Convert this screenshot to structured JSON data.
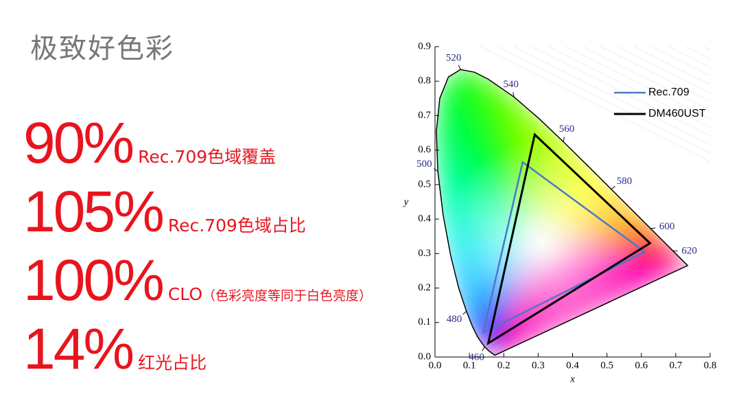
{
  "header": {
    "title": "极致好色彩"
  },
  "stats": [
    {
      "value": "90%",
      "label": "Rec.709色域覆盖"
    },
    {
      "value": "105%",
      "label": "Rec.709色域占比"
    },
    {
      "value": "100%",
      "label": "CLO",
      "note": "（色彩亮度等同于白色亮度）"
    },
    {
      "value": "14%",
      "label": "红光占比"
    }
  ],
  "chart_data": {
    "type": "chromaticity",
    "xlabel": "x",
    "ylabel": "y",
    "xlim": [
      0,
      0.8
    ],
    "ylim": [
      0,
      0.9
    ],
    "xticks": [
      {
        "value": 0,
        "label": "0.0"
      },
      0.1,
      0.2,
      0.3,
      0.4,
      0.5,
      0.6,
      0.7,
      0.8
    ],
    "yticks": [
      {
        "value": 0,
        "label": "0.0"
      },
      0.1,
      0.2,
      0.3,
      0.4,
      0.5,
      0.6,
      0.7,
      0.8,
      0.9
    ],
    "spectral_locus": {
      "wavelengths": [
        null,
        null,
        460,
        null,
        null,
        480,
        null,
        null,
        null,
        500,
        null,
        null,
        null,
        520,
        null,
        null,
        540,
        null,
        560,
        null,
        580,
        null,
        600,
        null,
        620,
        null,
        null
      ],
      "x": [
        0.1741,
        0.1566,
        0.144,
        0.1241,
        0.1096,
        0.0913,
        0.0687,
        0.0454,
        0.0235,
        0.0082,
        0.0039,
        0.0139,
        0.0389,
        0.0743,
        0.1142,
        0.1547,
        0.2296,
        0.3016,
        0.3731,
        0.4441,
        0.5125,
        0.5752,
        0.627,
        0.6658,
        0.6915,
        0.719,
        0.7347
      ],
      "y": [
        0.005,
        0.0177,
        0.0297,
        0.0578,
        0.0868,
        0.1327,
        0.2007,
        0.295,
        0.4127,
        0.5384,
        0.6548,
        0.7502,
        0.812,
        0.8338,
        0.8262,
        0.8059,
        0.7543,
        0.6923,
        0.6245,
        0.5547,
        0.4866,
        0.4242,
        0.3725,
        0.334,
        0.3083,
        0.2809,
        0.2653
      ]
    },
    "series": [
      {
        "name": "Rec.709",
        "color": "#4a78c8",
        "x": [
          0.61,
          0.255,
          0.14
        ],
        "values": [
          0.305,
          0.565,
          0.07
        ]
      },
      {
        "name": "DM460UST",
        "color": "#000000",
        "x": [
          0.625,
          0.29,
          0.155
        ],
        "values": [
          0.33,
          0.645,
          0.04
        ]
      }
    ],
    "legend": "upper right"
  }
}
